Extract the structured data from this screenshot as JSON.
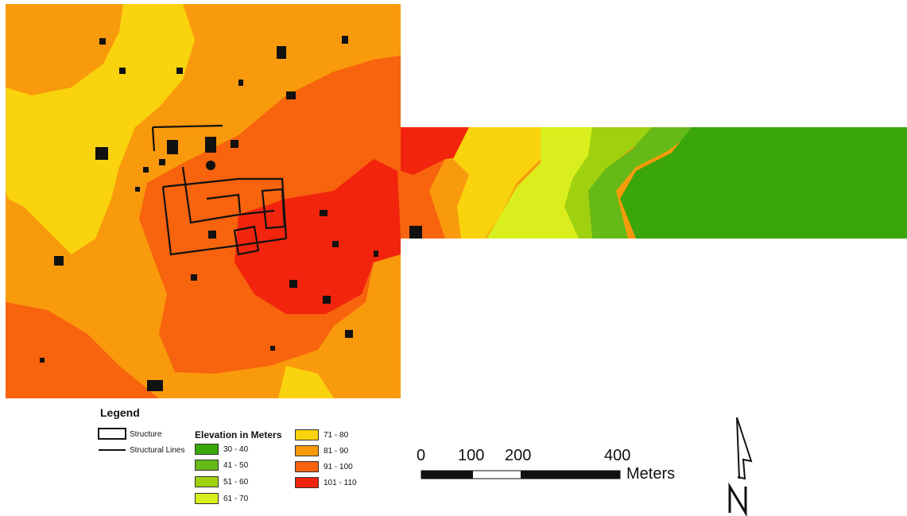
{
  "legend": {
    "title": "Legend",
    "structure_label": "Structure",
    "structural_lines_label": "Structural Lines",
    "elevation_title": "Elevation in Meters",
    "classes": [
      {
        "label": "30 - 40",
        "color": "#3ba60a"
      },
      {
        "label": "41 - 50",
        "color": "#66ba17"
      },
      {
        "label": "51 - 60",
        "color": "#9fd10f"
      },
      {
        "label": "61 - 70",
        "color": "#d9ee1c"
      },
      {
        "label": "71 - 80",
        "color": "#f9d30d"
      },
      {
        "label": "81 - 90",
        "color": "#f99a0c"
      },
      {
        "label": "91 - 100",
        "color": "#f8630d"
      },
      {
        "label": "101 - 110",
        "color": "#f2240d"
      }
    ]
  },
  "scale_bar": {
    "ticks": [
      "0",
      "100",
      "200",
      "400"
    ],
    "units": "Meters"
  },
  "north_arrow": {
    "label": "N"
  }
}
